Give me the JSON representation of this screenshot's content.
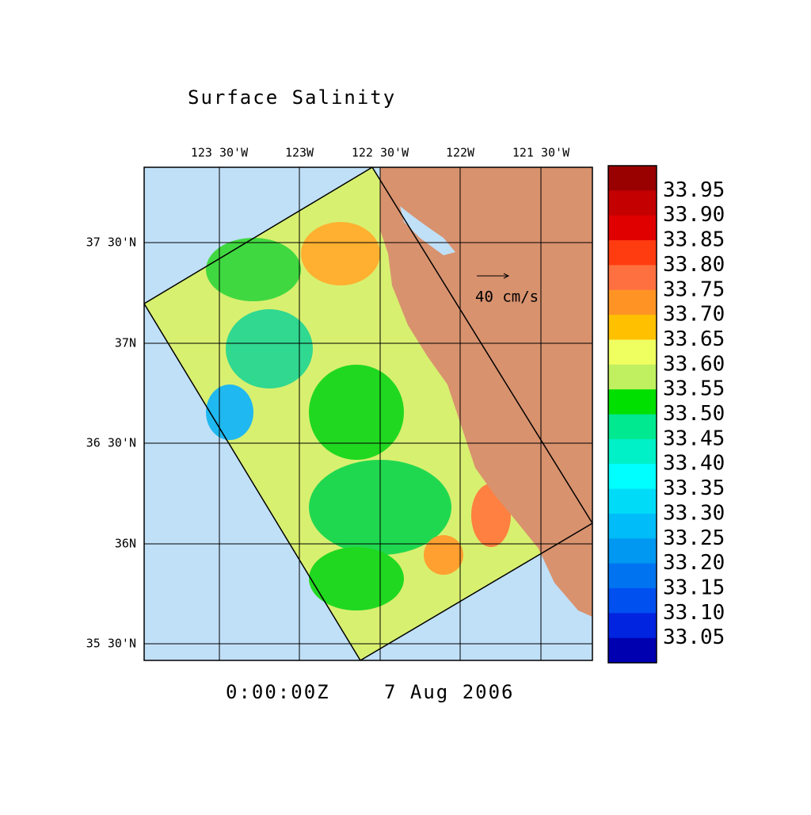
{
  "title": "Surface Salinity",
  "lon_labels": [
    "123 30'W",
    "123W",
    "122 30'W",
    "122W",
    "121 30'W"
  ],
  "lat_labels": [
    "37 30'N",
    "37N",
    "36 30'N",
    "36N",
    "35 30'N"
  ],
  "vector_scale": "40 cm/s",
  "time": "0:00:00Z",
  "date": "7 Aug 2006",
  "colorbar": {
    "labels": [
      "33.95",
      "33.90",
      "33.85",
      "33.80",
      "33.75",
      "33.70",
      "33.65",
      "33.60",
      "33.55",
      "33.50",
      "33.45",
      "33.40",
      "33.35",
      "33.30",
      "33.25",
      "33.20",
      "33.15",
      "33.10",
      "33.05"
    ],
    "colors": [
      "#990000",
      "#c40000",
      "#e00000",
      "#ff3c10",
      "#ff7040",
      "#ff9424",
      "#ffc000",
      "#f0ff60",
      "#c0f060",
      "#00e000",
      "#00e890",
      "#00f0c8",
      "#00ffff",
      "#00dcf8",
      "#00bcf8",
      "#0098f0",
      "#0074f0",
      "#0050f0",
      "#0024e0",
      "#0000b0"
    ]
  }
}
